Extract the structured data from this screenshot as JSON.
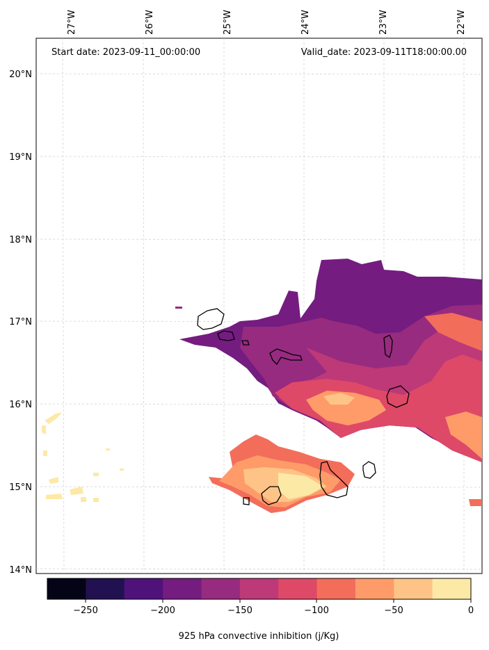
{
  "map": {
    "start_label": "Start date: 2023-09-11_00:00:00",
    "valid_label": "Valid_date: 2023-09-11T18:00:00.00",
    "lon_ticks": [
      "27°W",
      "26°W",
      "25°W",
      "24°W",
      "23°W",
      "22°W"
    ],
    "lat_ticks": [
      "20°N",
      "19°N",
      "18°N",
      "17°N",
      "16°N",
      "15°N",
      "14°N"
    ],
    "gridlines": true,
    "coastline_color": "#000000"
  },
  "colorbar": {
    "label": "925 hPa convective inhibition (j/Kg)",
    "tick_labels": [
      "−250",
      "−200",
      "−150",
      "−100",
      "−50",
      "0"
    ],
    "levels": [
      -275,
      -250,
      -225,
      -200,
      -175,
      -150,
      -125,
      -100,
      -75,
      -50,
      -25,
      0
    ],
    "colors": [
      "#050417",
      "#221150",
      "#4f127b",
      "#741c80",
      "#972b7f",
      "#bd3978",
      "#de4968",
      "#f36d5b",
      "#fe9b69",
      "#fec487",
      "#fde9a6"
    ]
  },
  "field_colors": {
    "very_low": "#741c80",
    "low": "#972b7f",
    "mid_low": "#bd3978",
    "mid": "#de4968",
    "mid_high": "#f36d5b",
    "high": "#fe9b69",
    "higher": "#fec487",
    "highest": "#fde9a6"
  }
}
